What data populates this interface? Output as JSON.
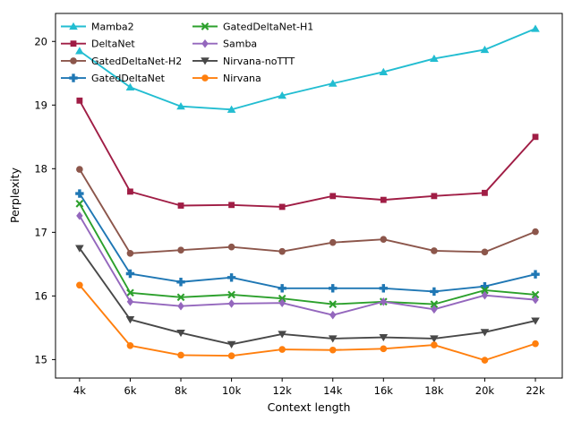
{
  "chart_data": {
    "type": "line",
    "title": "",
    "xlabel": "Context length",
    "ylabel": "Perplexity",
    "x_values_k": [
      4,
      6,
      8,
      10,
      12,
      14,
      16,
      18,
      20,
      22
    ],
    "x_tick_labels": [
      "4k",
      "6k",
      "8k",
      "10k",
      "12k",
      "14k",
      "16k",
      "18k",
      "20k",
      "22k"
    ],
    "y_ticks": [
      15,
      16,
      17,
      18,
      19,
      20
    ],
    "xlim_k": [
      3.05,
      23.06
    ],
    "ylim": [
      14.71,
      20.44
    ],
    "grid": false,
    "legend_position": "upper left, 2 columns, no frame",
    "series": [
      {
        "name": "Mamba2",
        "color": "#22bdd1",
        "marker": "triangle-up",
        "values": [
          19.85,
          19.28,
          18.98,
          18.93,
          19.15,
          19.34,
          19.52,
          19.73,
          19.87,
          20.2
        ]
      },
      {
        "name": "DeltaNet",
        "color": "#a01d45",
        "marker": "square",
        "values": [
          19.07,
          17.64,
          17.42,
          17.43,
          17.4,
          17.57,
          17.51,
          17.57,
          17.62,
          18.5
        ]
      },
      {
        "name": "GatedDeltaNet-H2",
        "color": "#8c564b",
        "marker": "circle",
        "values": [
          17.99,
          16.67,
          16.72,
          16.77,
          16.7,
          16.84,
          16.89,
          16.71,
          16.69,
          17.01
        ]
      },
      {
        "name": "GatedDeltaNet",
        "color": "#1f77b4",
        "marker": "plus",
        "values": [
          17.61,
          16.35,
          16.22,
          16.29,
          16.12,
          16.12,
          16.12,
          16.07,
          16.15,
          16.34
        ]
      },
      {
        "name": "GatedDeltaNet-H1",
        "color": "#2ca02c",
        "marker": "x",
        "values": [
          17.45,
          16.05,
          15.98,
          16.02,
          15.96,
          15.87,
          15.91,
          15.87,
          16.09,
          16.02
        ]
      },
      {
        "name": "Samba",
        "color": "#9467bd",
        "marker": "diamond",
        "values": [
          17.26,
          15.91,
          15.84,
          15.88,
          15.89,
          15.7,
          15.91,
          15.79,
          16.01,
          15.94
        ]
      },
      {
        "name": "Nirvana-noTTT",
        "color": "#484848",
        "marker": "triangle-down",
        "values": [
          16.75,
          15.63,
          15.42,
          15.24,
          15.4,
          15.33,
          15.35,
          15.33,
          15.43,
          15.61
        ]
      },
      {
        "name": "Nirvana",
        "color": "#ff7f0e",
        "marker": "circle",
        "values": [
          16.17,
          15.22,
          15.07,
          15.06,
          15.16,
          15.15,
          15.17,
          15.23,
          14.99,
          15.25
        ]
      }
    ],
    "legend_columns": [
      [
        "Mamba2",
        "DeltaNet",
        "GatedDeltaNet-H2",
        "GatedDeltaNet"
      ],
      [
        "GatedDeltaNet-H1",
        "Samba",
        "Nirvana-noTTT",
        "Nirvana"
      ]
    ]
  }
}
